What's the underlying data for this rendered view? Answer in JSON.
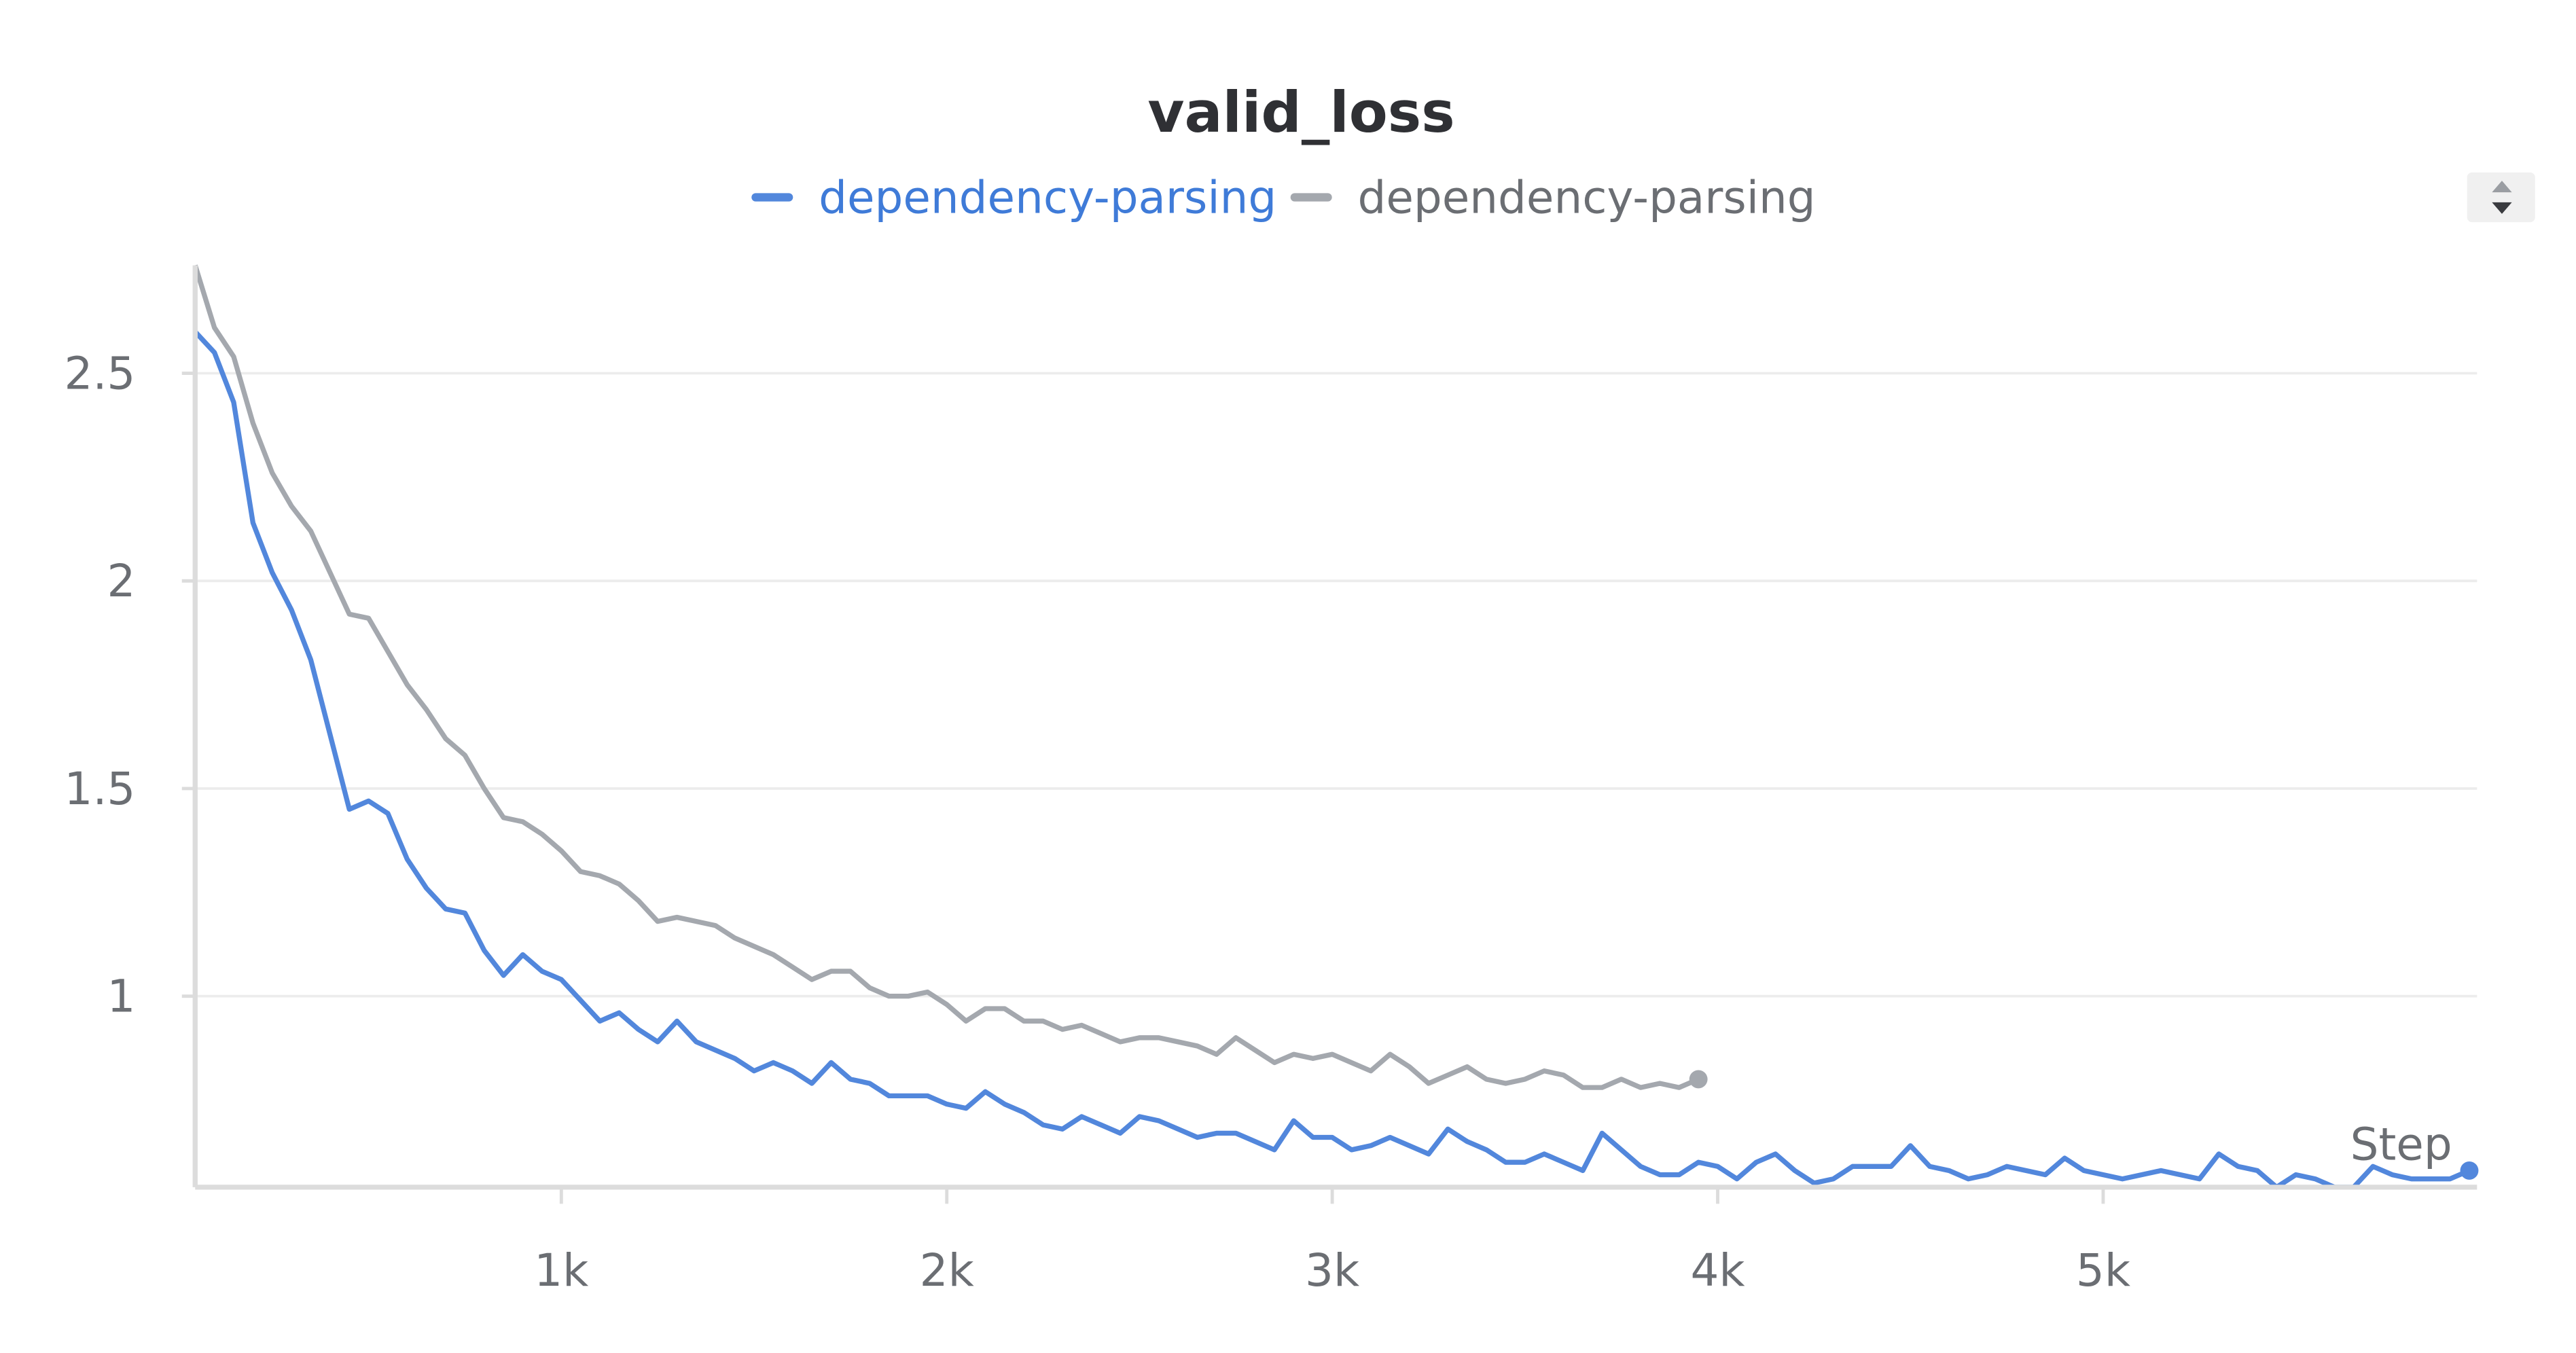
{
  "chart_data": {
    "type": "line",
    "title": "valid_loss",
    "x_label": "Step",
    "xlim": [
      50,
      5970
    ],
    "ylim": [
      0.54,
      2.76
    ],
    "xticks": [
      {
        "value": 1000,
        "label": "1k"
      },
      {
        "value": 2000,
        "label": "2k"
      },
      {
        "value": 3000,
        "label": "3k"
      },
      {
        "value": 4000,
        "label": "4k"
      },
      {
        "value": 5000,
        "label": "5k"
      }
    ],
    "yticks": [
      1,
      1.5,
      2,
      2.5
    ],
    "grid": true,
    "series": [
      {
        "name": "dependency-parsing",
        "color": "#5287dc",
        "x": [
          50,
          100,
          150,
          200,
          250,
          300,
          350,
          400,
          450,
          500,
          550,
          600,
          650,
          700,
          750,
          800,
          850,
          900,
          950,
          1000,
          1050,
          1100,
          1150,
          1200,
          1250,
          1300,
          1350,
          1400,
          1450,
          1500,
          1550,
          1600,
          1650,
          1700,
          1750,
          1800,
          1850,
          1900,
          1950,
          2000,
          2050,
          2100,
          2150,
          2200,
          2250,
          2300,
          2350,
          2400,
          2450,
          2500,
          2550,
          2600,
          2650,
          2700,
          2750,
          2800,
          2850,
          2900,
          2950,
          3000,
          3050,
          3100,
          3150,
          3200,
          3250,
          3300,
          3350,
          3400,
          3450,
          3500,
          3550,
          3600,
          3650,
          3700,
          3750,
          3800,
          3850,
          3900,
          3950,
          4000,
          4050,
          4100,
          4150,
          4200,
          4250,
          4300,
          4350,
          4400,
          4450,
          4500,
          4550,
          4600,
          4650,
          4700,
          4750,
          4800,
          4850,
          4900,
          4950,
          5000,
          5050,
          5100,
          5150,
          5200,
          5250,
          5300,
          5350,
          5400,
          5450,
          5500,
          5550,
          5600,
          5650,
          5700,
          5750,
          5800,
          5850,
          5900,
          5950
        ],
        "values": [
          2.6,
          2.55,
          2.43,
          2.14,
          2.02,
          1.93,
          1.81,
          1.63,
          1.45,
          1.47,
          1.44,
          1.33,
          1.26,
          1.21,
          1.2,
          1.11,
          1.05,
          1.1,
          1.06,
          1.04,
          0.99,
          0.94,
          0.96,
          0.92,
          0.89,
          0.94,
          0.89,
          0.87,
          0.85,
          0.82,
          0.84,
          0.82,
          0.79,
          0.84,
          0.8,
          0.79,
          0.76,
          0.76,
          0.76,
          0.74,
          0.73,
          0.77,
          0.74,
          0.72,
          0.69,
          0.68,
          0.71,
          0.69,
          0.67,
          0.71,
          0.7,
          0.68,
          0.66,
          0.67,
          0.67,
          0.65,
          0.63,
          0.7,
          0.66,
          0.66,
          0.63,
          0.64,
          0.66,
          0.64,
          0.62,
          0.68,
          0.65,
          0.63,
          0.6,
          0.6,
          0.62,
          0.6,
          0.58,
          0.67,
          0.63,
          0.59,
          0.57,
          0.57,
          0.6,
          0.59,
          0.56,
          0.6,
          0.62,
          0.58,
          0.55,
          0.56,
          0.59,
          0.59,
          0.59,
          0.64,
          0.59,
          0.58,
          0.56,
          0.57,
          0.59,
          0.58,
          0.57,
          0.61,
          0.58,
          0.57,
          0.56,
          0.57,
          0.58,
          0.57,
          0.56,
          0.62,
          0.59,
          0.58,
          0.54,
          0.57,
          0.56,
          0.54,
          0.54,
          0.59,
          0.57,
          0.56,
          0.56,
          0.56,
          0.58
        ]
      },
      {
        "name": "dependency-parsing",
        "color": "#a4a8ae",
        "x": [
          50,
          100,
          150,
          200,
          250,
          300,
          350,
          400,
          450,
          500,
          550,
          600,
          650,
          700,
          750,
          800,
          850,
          900,
          950,
          1000,
          1050,
          1100,
          1150,
          1200,
          1250,
          1300,
          1350,
          1400,
          1450,
          1500,
          1550,
          1600,
          1650,
          1700,
          1750,
          1800,
          1850,
          1900,
          1950,
          2000,
          2050,
          2100,
          2150,
          2200,
          2250,
          2300,
          2350,
          2400,
          2450,
          2500,
          2550,
          2600,
          2650,
          2700,
          2750,
          2800,
          2850,
          2900,
          2950,
          3000,
          3050,
          3100,
          3150,
          3200,
          3250,
          3300,
          3350,
          3400,
          3450,
          3500,
          3550,
          3600,
          3650,
          3700,
          3750,
          3800,
          3850,
          3900,
          3950
        ],
        "values": [
          2.76,
          2.61,
          2.54,
          2.38,
          2.26,
          2.18,
          2.12,
          2.02,
          1.92,
          1.91,
          1.83,
          1.75,
          1.69,
          1.62,
          1.58,
          1.5,
          1.43,
          1.42,
          1.39,
          1.35,
          1.3,
          1.29,
          1.27,
          1.23,
          1.18,
          1.19,
          1.18,
          1.17,
          1.14,
          1.12,
          1.1,
          1.07,
          1.04,
          1.06,
          1.06,
          1.02,
          1.0,
          1.0,
          1.01,
          0.98,
          0.94,
          0.97,
          0.97,
          0.94,
          0.94,
          0.92,
          0.93,
          0.91,
          0.89,
          0.9,
          0.9,
          0.89,
          0.88,
          0.86,
          0.9,
          0.87,
          0.84,
          0.86,
          0.85,
          0.86,
          0.84,
          0.82,
          0.86,
          0.83,
          0.79,
          0.81,
          0.83,
          0.8,
          0.79,
          0.8,
          0.82,
          0.81,
          0.78,
          0.78,
          0.8,
          0.78,
          0.79,
          0.78,
          0.8
        ]
      }
    ]
  }
}
